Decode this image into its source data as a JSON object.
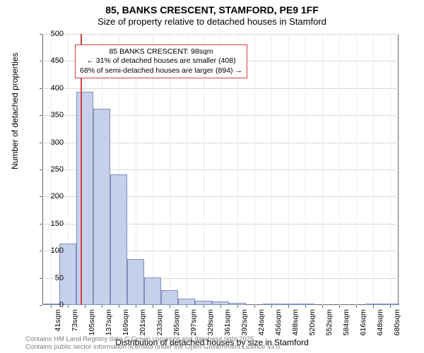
{
  "title": {
    "main": "85, BANKS CRESCENT, STAMFORD, PE9 1FF",
    "sub": "Size of property relative to detached houses in Stamford"
  },
  "chart": {
    "type": "histogram",
    "ylabel": "Number of detached properties",
    "xlabel": "Distribution of detached houses by size in Stamford",
    "ylim": [
      0,
      500
    ],
    "ytick_step": 50,
    "yticks": [
      0,
      50,
      100,
      150,
      200,
      250,
      300,
      350,
      400,
      450,
      500
    ],
    "xtick_labels": [
      "41sqm",
      "73sqm",
      "105sqm",
      "137sqm",
      "169sqm",
      "201sqm",
      "233sqm",
      "265sqm",
      "297sqm",
      "329sqm",
      "361sqm",
      "392sqm",
      "424sqm",
      "456sqm",
      "488sqm",
      "520sqm",
      "552sqm",
      "584sqm",
      "616sqm",
      "648sqm",
      "680sqm"
    ],
    "xtick_positions": [
      41,
      73,
      105,
      137,
      169,
      201,
      233,
      265,
      297,
      329,
      361,
      392,
      424,
      456,
      488,
      520,
      552,
      584,
      616,
      648,
      680
    ],
    "x_range": [
      25,
      696
    ],
    "bars": [
      {
        "x0": 25,
        "x1": 57,
        "value": 2
      },
      {
        "x0": 57,
        "x1": 89,
        "value": 113
      },
      {
        "x0": 89,
        "x1": 121,
        "value": 393
      },
      {
        "x0": 121,
        "x1": 153,
        "value": 362
      },
      {
        "x0": 153,
        "x1": 185,
        "value": 241
      },
      {
        "x0": 185,
        "x1": 217,
        "value": 85
      },
      {
        "x0": 217,
        "x1": 249,
        "value": 51
      },
      {
        "x0": 249,
        "x1": 281,
        "value": 27
      },
      {
        "x0": 281,
        "x1": 313,
        "value": 12
      },
      {
        "x0": 313,
        "x1": 345,
        "value": 8
      },
      {
        "x0": 345,
        "x1": 377,
        "value": 6
      },
      {
        "x0": 377,
        "x1": 409,
        "value": 4
      },
      {
        "x0": 409,
        "x1": 441,
        "value": 0
      },
      {
        "x0": 441,
        "x1": 473,
        "value": 2
      },
      {
        "x0": 473,
        "x1": 505,
        "value": 2
      },
      {
        "x0": 505,
        "x1": 537,
        "value": 1
      },
      {
        "x0": 537,
        "x1": 569,
        "value": 0
      },
      {
        "x0": 569,
        "x1": 601,
        "value": 0
      },
      {
        "x0": 601,
        "x1": 633,
        "value": 0
      },
      {
        "x0": 633,
        "x1": 665,
        "value": 1
      },
      {
        "x0": 665,
        "x1": 697,
        "value": 1
      }
    ],
    "bar_fill": "#c6d0ea",
    "bar_stroke": "#7f8fbf",
    "grid_color": "#d9d9d9",
    "marker": {
      "x": 98,
      "color": "#d43f3f"
    },
    "annotation": {
      "line1": "85 BANKS CRESCENT: 98sqm",
      "line2": "← 31% of detached houses are smaller (408)",
      "line3": "68% of semi-detached houses are larger (894) →",
      "border_color": "#d43f3f"
    }
  },
  "footnote": {
    "line1": "Contains HM Land Registry data © Crown copyright and database right 2025.",
    "line2": "Contains public sector information licensed under the Open Government Licence v3.0."
  }
}
